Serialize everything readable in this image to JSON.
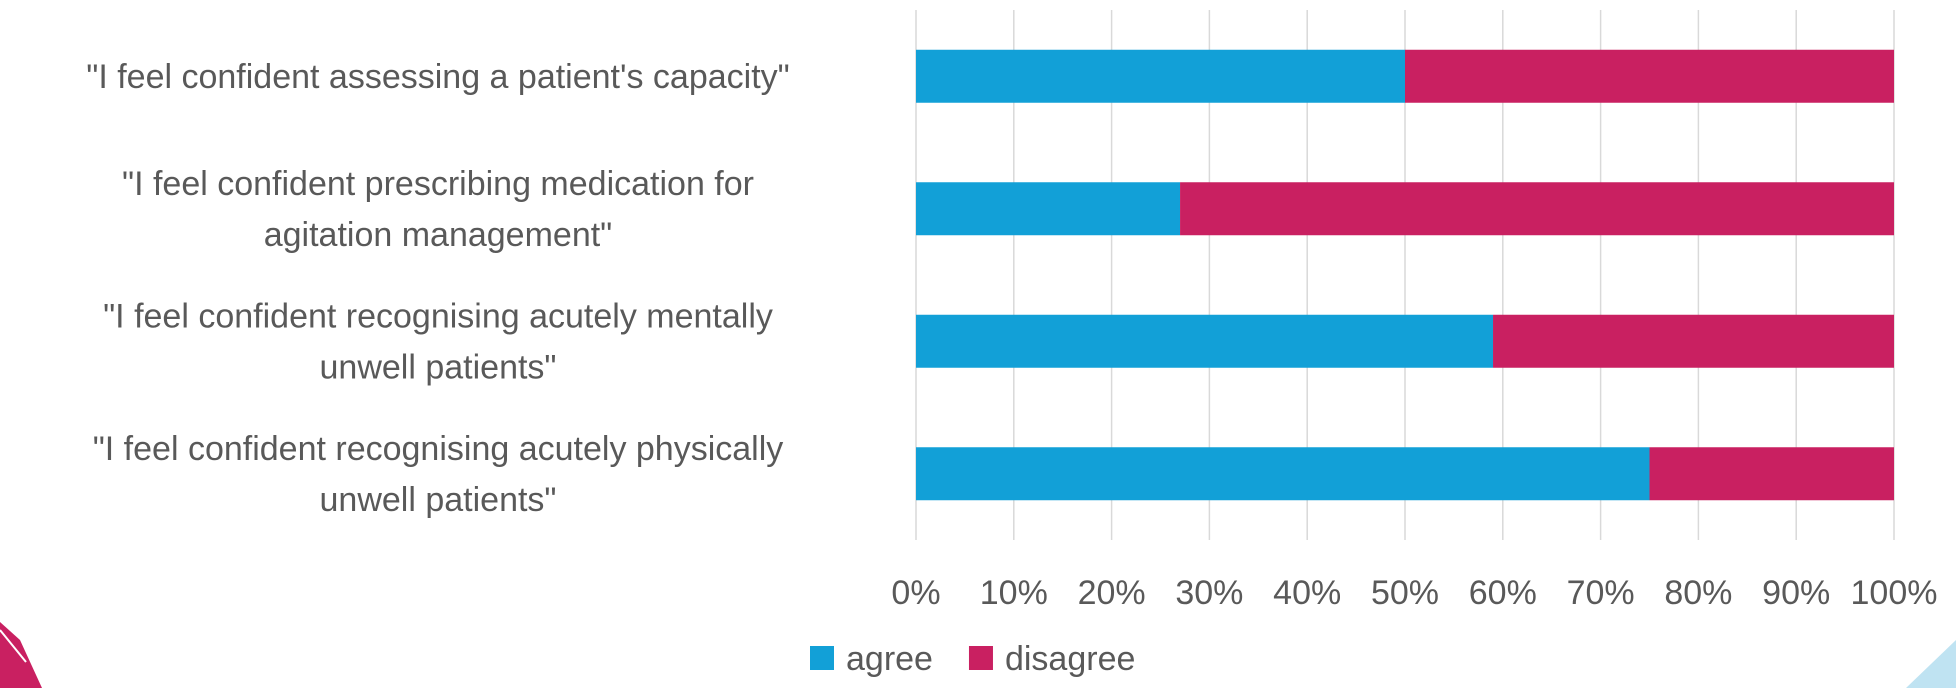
{
  "chart_data": {
    "type": "bar",
    "orientation": "horizontal",
    "stacked": "percent",
    "categories": [
      "\"I feel confident assessing a patient's capacity\"",
      "\"I feel confident prescribing medication for agitation management\"",
      "\"I feel confident recognising acutely mentally unwell patients\"",
      "\"I feel confident recognising acutely physically unwell patients\""
    ],
    "category_lines": [
      [
        "\"I feel confident assessing a patient's capacity\""
      ],
      [
        "\"I feel confident prescribing medication for",
        "agitation management\""
      ],
      [
        "\"I feel confident recognising acutely mentally",
        "unwell patients\""
      ],
      [
        "\"I feel confident recognising acutely physically",
        "unwell patients\""
      ]
    ],
    "series": [
      {
        "name": "agree",
        "color": "#12A0D7",
        "values": [
          50,
          27,
          59,
          75
        ]
      },
      {
        "name": "disagree",
        "color": "#C92061",
        "values": [
          50,
          73,
          41,
          25
        ]
      }
    ],
    "x_ticks": [
      "0%",
      "10%",
      "20%",
      "30%",
      "40%",
      "50%",
      "60%",
      "70%",
      "80%",
      "90%",
      "100%"
    ],
    "xlim": [
      0,
      100
    ],
    "grid": true,
    "legend_position": "bottom",
    "title": "",
    "xlabel": "",
    "ylabel": ""
  }
}
